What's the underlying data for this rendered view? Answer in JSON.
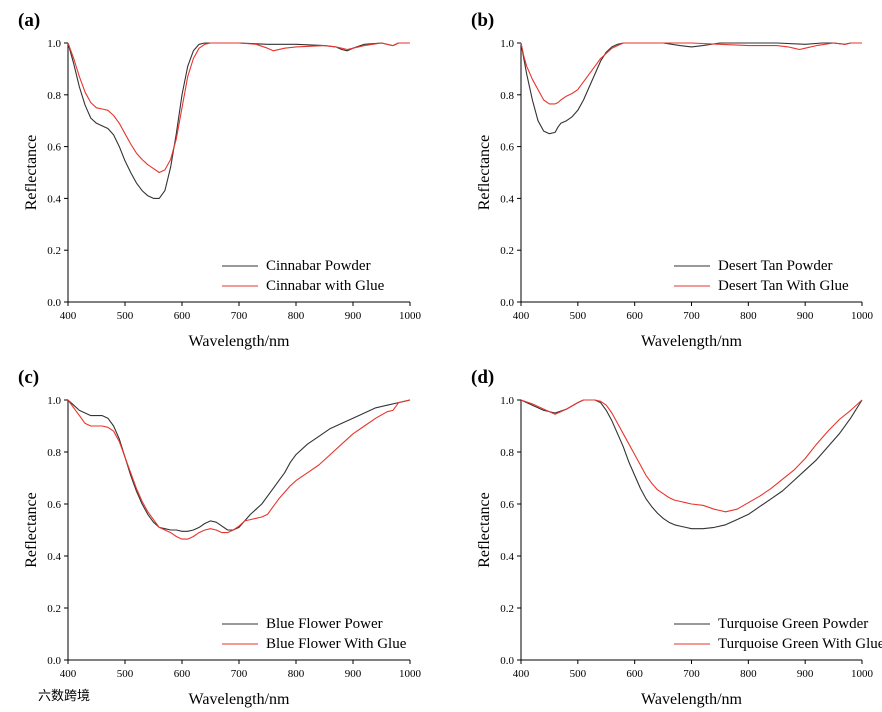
{
  "watermark": "六数跨境",
  "colors": {
    "powder": "#333333",
    "glue": "#e8352e"
  },
  "chart_data": [
    {
      "type": "line",
      "panel_label": "(a)",
      "xlabel": "Wavelength/nm",
      "ylabel": "Reflectance",
      "xlim": [
        400,
        1000
      ],
      "ylim": [
        0,
        1.0
      ],
      "xticks": [
        400,
        500,
        600,
        700,
        800,
        900,
        1000
      ],
      "yticks": [
        0.0,
        0.2,
        0.4,
        0.6,
        0.8,
        1.0
      ],
      "legend_position": "bottom-right",
      "series": [
        {
          "name": "Cinnabar Powder",
          "color": "#333333",
          "x": [
            400,
            410,
            420,
            430,
            440,
            450,
            460,
            470,
            480,
            490,
            500,
            510,
            520,
            530,
            540,
            550,
            560,
            570,
            580,
            590,
            600,
            610,
            620,
            630,
            640,
            650,
            700,
            750,
            800,
            850,
            870,
            880,
            890,
            900,
            920,
            950,
            970,
            980,
            1000
          ],
          "y": [
            1.0,
            0.92,
            0.83,
            0.76,
            0.71,
            0.69,
            0.68,
            0.67,
            0.645,
            0.6,
            0.545,
            0.5,
            0.46,
            0.43,
            0.41,
            0.4,
            0.4,
            0.43,
            0.52,
            0.65,
            0.8,
            0.91,
            0.97,
            0.995,
            1.0,
            1.0,
            1.0,
            0.995,
            0.995,
            0.99,
            0.985,
            0.975,
            0.97,
            0.98,
            0.995,
            1.0,
            0.99,
            1.0,
            1.0
          ]
        },
        {
          "name": "Cinnabar with Glue",
          "color": "#e8352e",
          "x": [
            400,
            410,
            420,
            430,
            440,
            450,
            460,
            470,
            480,
            490,
            500,
            510,
            520,
            530,
            540,
            550,
            560,
            570,
            580,
            590,
            600,
            610,
            620,
            630,
            640,
            650,
            700,
            730,
            750,
            760,
            780,
            800,
            850,
            870,
            880,
            890,
            900,
            920,
            950,
            970,
            980,
            1000
          ],
          "y": [
            1.0,
            0.94,
            0.87,
            0.81,
            0.77,
            0.75,
            0.745,
            0.74,
            0.72,
            0.69,
            0.65,
            0.61,
            0.575,
            0.55,
            0.53,
            0.515,
            0.5,
            0.51,
            0.55,
            0.63,
            0.75,
            0.87,
            0.94,
            0.98,
            0.995,
            1.0,
            1.0,
            0.995,
            0.98,
            0.97,
            0.98,
            0.985,
            0.99,
            0.985,
            0.98,
            0.975,
            0.98,
            0.99,
            1.0,
            0.99,
            1.0,
            1.0
          ]
        }
      ]
    },
    {
      "type": "line",
      "panel_label": "(b)",
      "xlabel": "Wavelength/nm",
      "ylabel": "Reflectance",
      "xlim": [
        400,
        1000
      ],
      "ylim": [
        0,
        1.0
      ],
      "xticks": [
        400,
        500,
        600,
        700,
        800,
        900,
        1000
      ],
      "yticks": [
        0.0,
        0.2,
        0.4,
        0.6,
        0.8,
        1.0
      ],
      "legend_position": "bottom-right",
      "series": [
        {
          "name": "Desert Tan Powder",
          "color": "#333333",
          "x": [
            400,
            405,
            410,
            420,
            430,
            440,
            450,
            460,
            465,
            470,
            480,
            490,
            500,
            510,
            520,
            530,
            540,
            550,
            560,
            570,
            580,
            600,
            650,
            680,
            700,
            720,
            750,
            800,
            850,
            900,
            930,
            950,
            970,
            980,
            1000
          ],
          "y": [
            1.0,
            0.94,
            0.88,
            0.78,
            0.7,
            0.66,
            0.65,
            0.655,
            0.675,
            0.69,
            0.7,
            0.715,
            0.74,
            0.78,
            0.83,
            0.88,
            0.93,
            0.965,
            0.985,
            0.995,
            1.0,
            1.0,
            1.0,
            0.99,
            0.985,
            0.99,
            1.0,
            1.0,
            1.0,
            0.995,
            1.0,
            1.0,
            0.995,
            1.0,
            1.0
          ]
        },
        {
          "name": "Desert Tan With Glue",
          "color": "#e8352e",
          "x": [
            400,
            405,
            410,
            420,
            430,
            440,
            450,
            460,
            465,
            470,
            480,
            490,
            500,
            510,
            520,
            530,
            540,
            550,
            560,
            570,
            580,
            600,
            650,
            700,
            750,
            800,
            850,
            870,
            880,
            890,
            900,
            920,
            950,
            970,
            980,
            1000
          ],
          "y": [
            1.0,
            0.95,
            0.91,
            0.86,
            0.82,
            0.78,
            0.765,
            0.765,
            0.77,
            0.78,
            0.795,
            0.805,
            0.82,
            0.85,
            0.88,
            0.91,
            0.94,
            0.96,
            0.98,
            0.99,
            1.0,
            1.0,
            1.0,
            1.0,
            0.995,
            0.99,
            0.99,
            0.985,
            0.98,
            0.975,
            0.98,
            0.99,
            1.0,
            0.995,
            1.0,
            1.0
          ]
        }
      ]
    },
    {
      "type": "line",
      "panel_label": "(c)",
      "xlabel": "Wavelength/nm",
      "ylabel": "Reflectance",
      "xlim": [
        400,
        1000
      ],
      "ylim": [
        0,
        1.0
      ],
      "xticks": [
        400,
        500,
        600,
        700,
        800,
        900,
        1000
      ],
      "yticks": [
        0.0,
        0.2,
        0.4,
        0.6,
        0.8,
        1.0
      ],
      "legend_position": "bottom-right",
      "series": [
        {
          "name": "Blue Flower Power",
          "color": "#333333",
          "x": [
            400,
            410,
            420,
            430,
            440,
            450,
            460,
            470,
            480,
            490,
            500,
            510,
            520,
            530,
            540,
            550,
            560,
            570,
            580,
            590,
            600,
            610,
            620,
            630,
            640,
            650,
            660,
            670,
            680,
            690,
            700,
            710,
            720,
            730,
            740,
            750,
            760,
            770,
            780,
            790,
            800,
            820,
            840,
            860,
            880,
            900,
            920,
            940,
            960,
            980,
            990,
            1000
          ],
          "y": [
            1.0,
            0.98,
            0.96,
            0.95,
            0.94,
            0.94,
            0.94,
            0.93,
            0.9,
            0.85,
            0.78,
            0.71,
            0.65,
            0.6,
            0.56,
            0.53,
            0.51,
            0.505,
            0.5,
            0.5,
            0.495,
            0.495,
            0.5,
            0.51,
            0.525,
            0.535,
            0.53,
            0.515,
            0.5,
            0.5,
            0.51,
            0.535,
            0.56,
            0.58,
            0.6,
            0.63,
            0.66,
            0.69,
            0.72,
            0.76,
            0.79,
            0.83,
            0.86,
            0.89,
            0.91,
            0.93,
            0.95,
            0.97,
            0.98,
            0.99,
            0.995,
            1.0
          ]
        },
        {
          "name": "Blue Flower With Glue",
          "color": "#e8352e",
          "x": [
            400,
            410,
            420,
            430,
            440,
            450,
            460,
            470,
            480,
            490,
            500,
            510,
            520,
            530,
            540,
            550,
            560,
            570,
            580,
            590,
            600,
            610,
            620,
            630,
            640,
            650,
            660,
            670,
            680,
            690,
            700,
            710,
            720,
            730,
            740,
            750,
            760,
            770,
            780,
            790,
            800,
            820,
            840,
            860,
            880,
            900,
            920,
            940,
            960,
            970,
            980,
            1000
          ],
          "y": [
            1.0,
            0.97,
            0.94,
            0.91,
            0.9,
            0.9,
            0.9,
            0.895,
            0.88,
            0.84,
            0.78,
            0.72,
            0.66,
            0.61,
            0.57,
            0.54,
            0.51,
            0.5,
            0.49,
            0.475,
            0.465,
            0.465,
            0.475,
            0.49,
            0.5,
            0.505,
            0.5,
            0.49,
            0.49,
            0.5,
            0.515,
            0.535,
            0.54,
            0.545,
            0.55,
            0.56,
            0.59,
            0.62,
            0.645,
            0.67,
            0.69,
            0.72,
            0.75,
            0.79,
            0.83,
            0.87,
            0.9,
            0.93,
            0.955,
            0.96,
            0.99,
            1.0
          ]
        }
      ]
    },
    {
      "type": "line",
      "panel_label": "(d)",
      "xlabel": "Wavelength/nm",
      "ylabel": "Reflectance",
      "xlim": [
        400,
        1000
      ],
      "ylim": [
        0,
        1.0
      ],
      "xticks": [
        400,
        500,
        600,
        700,
        800,
        900,
        1000
      ],
      "yticks": [
        0.0,
        0.2,
        0.4,
        0.6,
        0.8,
        1.0
      ],
      "legend_position": "bottom-right",
      "series": [
        {
          "name": "Turquoise Green Powder",
          "color": "#333333",
          "x": [
            400,
            420,
            440,
            460,
            480,
            500,
            510,
            520,
            530,
            540,
            550,
            560,
            570,
            580,
            590,
            600,
            610,
            620,
            630,
            640,
            650,
            660,
            670,
            680,
            690,
            700,
            720,
            740,
            760,
            780,
            800,
            820,
            840,
            860,
            880,
            900,
            920,
            940,
            960,
            980,
            1000
          ],
          "y": [
            1.0,
            0.98,
            0.96,
            0.95,
            0.965,
            0.99,
            1.0,
            1.0,
            1.0,
            0.99,
            0.96,
            0.92,
            0.87,
            0.82,
            0.76,
            0.71,
            0.66,
            0.62,
            0.59,
            0.565,
            0.545,
            0.53,
            0.52,
            0.515,
            0.51,
            0.505,
            0.505,
            0.51,
            0.52,
            0.54,
            0.56,
            0.59,
            0.62,
            0.65,
            0.69,
            0.73,
            0.77,
            0.82,
            0.87,
            0.93,
            1.0
          ]
        },
        {
          "name": "Turquoise Green With Glue",
          "color": "#e8352e",
          "x": [
            400,
            420,
            440,
            460,
            480,
            500,
            510,
            520,
            530,
            540,
            550,
            560,
            570,
            580,
            590,
            600,
            610,
            620,
            630,
            640,
            650,
            660,
            670,
            680,
            690,
            700,
            720,
            740,
            750,
            760,
            780,
            800,
            820,
            840,
            860,
            880,
            900,
            920,
            940,
            960,
            980,
            1000
          ],
          "y": [
            1.0,
            0.985,
            0.965,
            0.945,
            0.965,
            0.99,
            1.0,
            1.0,
            1.0,
            0.995,
            0.98,
            0.95,
            0.91,
            0.87,
            0.83,
            0.79,
            0.75,
            0.71,
            0.68,
            0.655,
            0.64,
            0.625,
            0.615,
            0.61,
            0.605,
            0.6,
            0.595,
            0.58,
            0.575,
            0.57,
            0.58,
            0.605,
            0.63,
            0.66,
            0.695,
            0.73,
            0.775,
            0.83,
            0.88,
            0.925,
            0.96,
            1.0
          ]
        }
      ]
    }
  ]
}
